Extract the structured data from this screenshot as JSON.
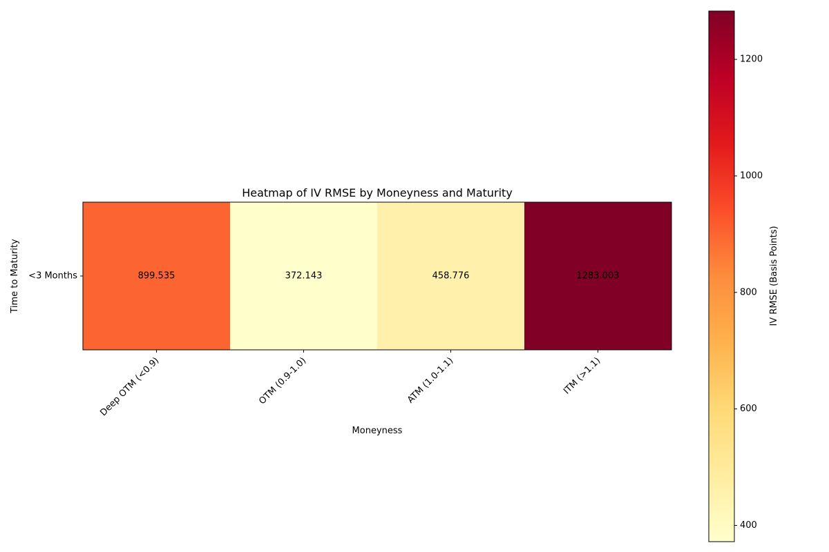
{
  "chart_data": {
    "type": "heatmap",
    "title": "Heatmap of IV RMSE by Moneyness and Maturity",
    "xlabel": "Moneyness",
    "ylabel": "Time to Maturity",
    "x_categories": [
      "Deep OTM (<0.9)",
      "OTM (0.9-1.0)",
      "ATM (1.0-1.1)",
      "ITM (>1.1)"
    ],
    "y_categories": [
      "<3 Months"
    ],
    "values": [
      [
        899.535,
        372.143,
        458.776,
        1283.003
      ]
    ],
    "value_labels": [
      [
        "899.535",
        "372.143",
        "458.776",
        "1283.003"
      ]
    ],
    "colormap": "YlOrRd",
    "colorbar": {
      "label": "IV RMSE (Basis Points)",
      "vmin": 372.143,
      "vmax": 1283.003,
      "ticks": [
        400,
        600,
        800,
        1000,
        1200
      ],
      "tick_labels": [
        "400",
        "600",
        "800",
        "1000",
        "1200"
      ]
    },
    "grid": false
  }
}
